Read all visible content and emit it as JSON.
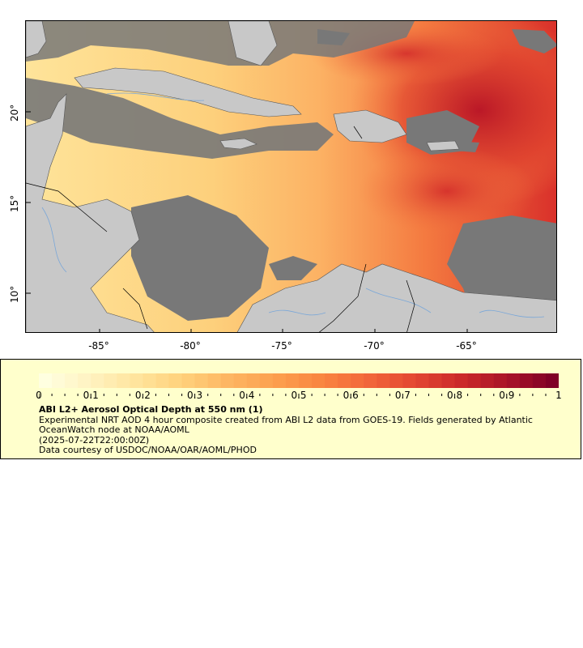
{
  "map": {
    "x_axis_labels": [
      "-85°",
      "-80°",
      "-75°",
      "-70°",
      "-65°"
    ],
    "y_axis_labels": [
      "20°",
      "15°",
      "10°"
    ],
    "land_color": "#c8c8c8",
    "nodata_color": "#787878",
    "water_line_color": "#7aa7d8"
  },
  "colorbar": {
    "tick_labels": [
      "0",
      "0.1",
      "0.2",
      "0.3",
      "0.4",
      "0.5",
      "0.6",
      "0.7",
      "0.8",
      "0.9",
      "1"
    ],
    "colors": [
      "#ffffe0",
      "#fff2c0",
      "#ffe49c",
      "#ffd07a",
      "#fdb562",
      "#fc9f4e",
      "#f98540",
      "#f2673a",
      "#e34732",
      "#cc2a2a",
      "#aa1428",
      "#800026"
    ]
  },
  "legend": {
    "title": "ABI L2+ Aerosol Optical Depth at 550 nm (1)",
    "description": "Experimental NRT AOD 4 hour composite created from ABI L2 data from GOES-19. Fields generated by Atlantic OceanWatch node at NOAA/AOML",
    "timestamp": "(2025-07-22T22:00:00Z)",
    "credit": "Data courtesy of USDOC/NOAA/OAR/AOML/PHOD"
  }
}
